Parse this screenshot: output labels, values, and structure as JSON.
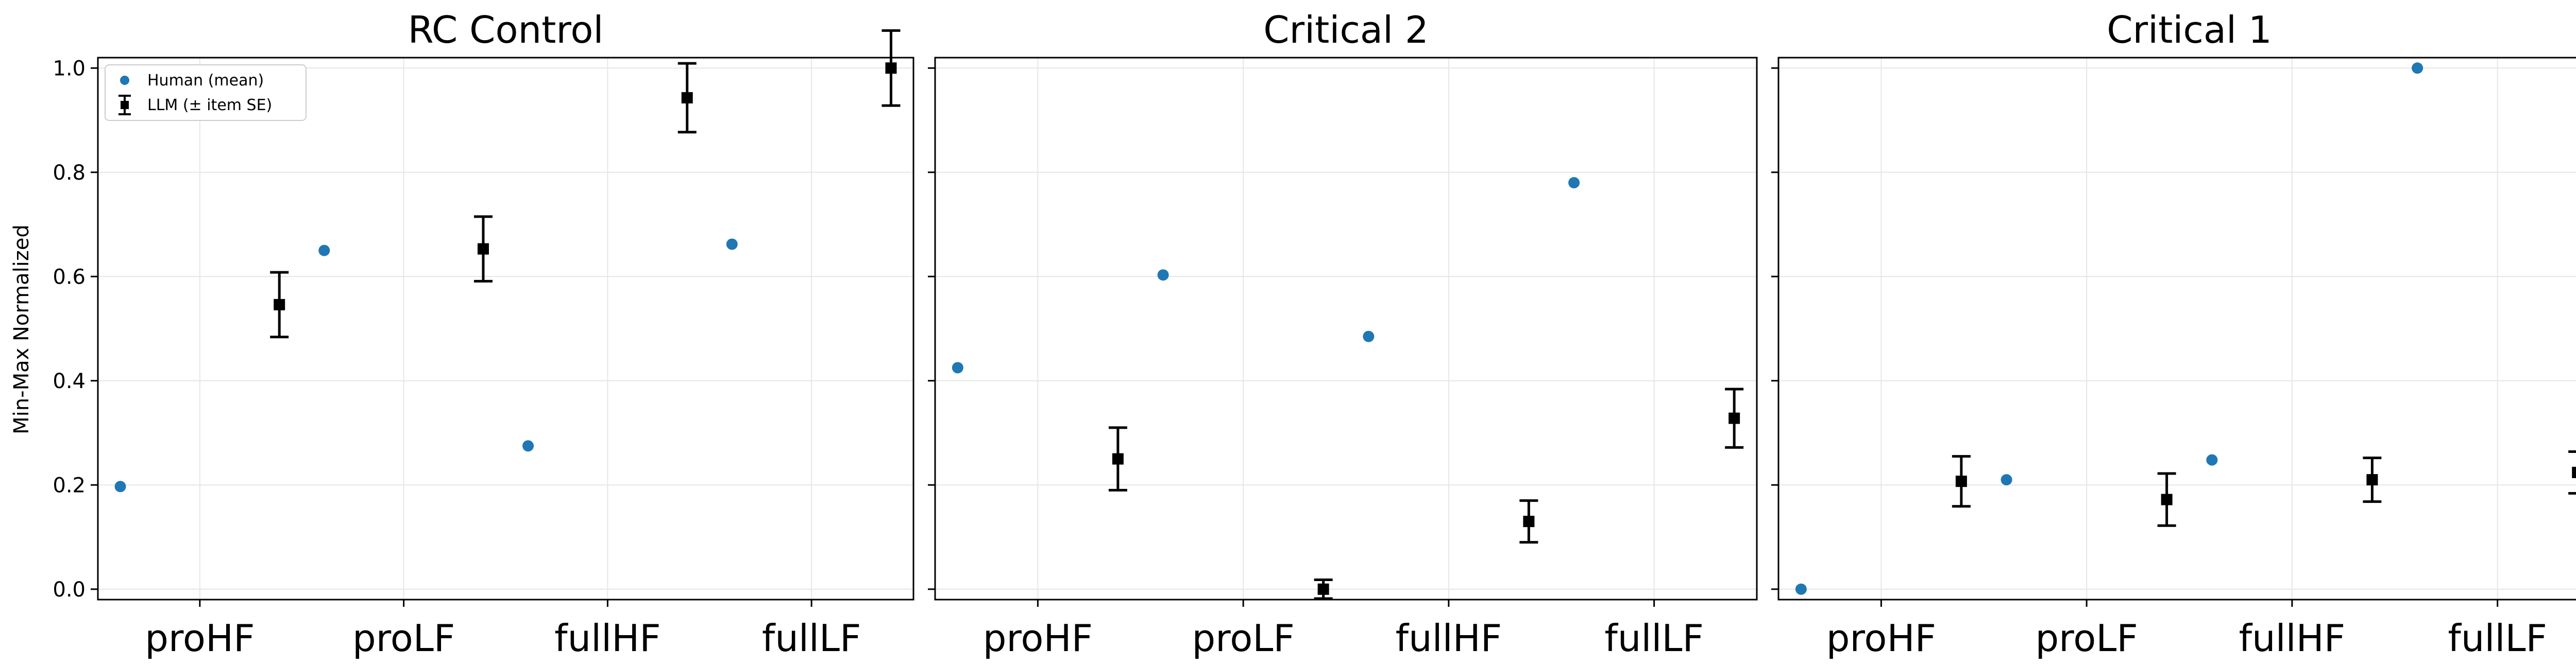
{
  "chart_data": {
    "type": "scatter",
    "ylabel": "Min-Max Normalized",
    "ylim": [
      -0.02,
      1.02
    ],
    "yticks": [
      "0.0",
      "0.2",
      "0.4",
      "0.6",
      "0.8",
      "1.0"
    ],
    "grid": true,
    "legend": {
      "placement": "top-left",
      "entries": [
        "Human (mean)",
        "LLM (± item SE)"
      ]
    },
    "colors": {
      "human": "#1f77b4",
      "llm": "#000000"
    },
    "categories": [
      "proHF",
      "proLF",
      "fullHF",
      "fullLF"
    ],
    "panels": [
      {
        "title": "RC Control",
        "series": [
          {
            "name": "Human (mean)",
            "values": [
              0.197,
              0.65,
              0.275,
              0.662
            ]
          },
          {
            "name": "LLM (± item SE)",
            "values": [
              0.546,
              0.653,
              0.943,
              1.0
            ],
            "se": [
              0.062,
              0.062,
              0.066,
              0.072
            ]
          }
        ]
      },
      {
        "title": "Critical 2",
        "series": [
          {
            "name": "Human (mean)",
            "values": [
              0.425,
              0.603,
              0.485,
              0.78
            ]
          },
          {
            "name": "LLM (± item SE)",
            "values": [
              0.25,
              0.0,
              0.13,
              0.328
            ],
            "se": [
              0.06,
              0.018,
              0.04,
              0.056
            ]
          }
        ]
      },
      {
        "title": "Critical 1",
        "series": [
          {
            "name": "Human (mean)",
            "values": [
              0.0,
              0.21,
              0.248,
              1.0
            ]
          },
          {
            "name": "LLM (± item SE)",
            "values": [
              0.207,
              0.172,
              0.21,
              0.224
            ],
            "se": [
              0.048,
              0.05,
              0.042,
              0.04
            ]
          }
        ]
      }
    ]
  }
}
